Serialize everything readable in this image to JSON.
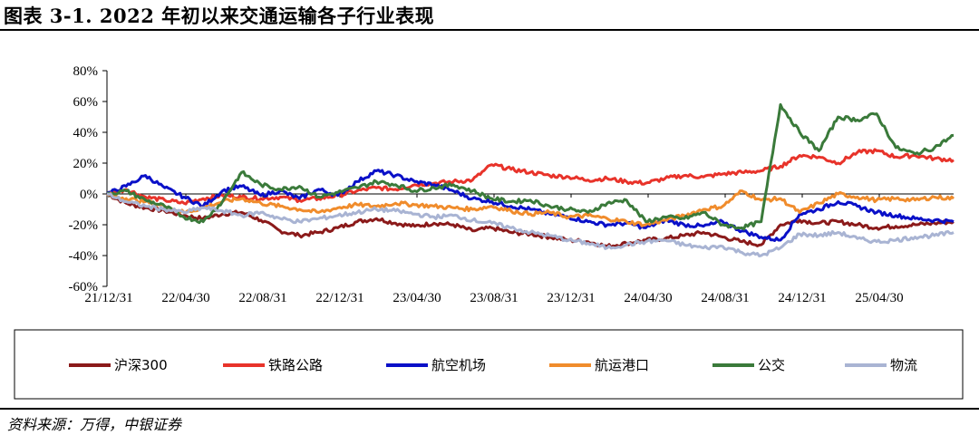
{
  "title": "图表 3-1. 2022 年初以来交通运输各子行业表现",
  "source": "资料来源：万得，中银证券",
  "chart_data": {
    "type": "line",
    "x_labels": [
      "21/12/31",
      "22/04/30",
      "22/08/31",
      "22/12/31",
      "23/04/30",
      "23/08/31",
      "23/12/31",
      "24/04/30",
      "24/08/31",
      "24/12/31",
      "25/04/30"
    ],
    "y_ticks": [
      "80%",
      "60%",
      "40%",
      "20%",
      "0%",
      "-20%",
      "-40%",
      "-60%"
    ],
    "ylim": [
      -60,
      80
    ],
    "x_range": [
      0,
      44
    ],
    "legend_position": "bottom",
    "series": [
      {
        "name": "沪深300",
        "color": "#8b1a1a",
        "points": [
          [
            0,
            0
          ],
          [
            1,
            -6
          ],
          [
            2,
            -9
          ],
          [
            3,
            -11
          ],
          [
            4,
            -14
          ],
          [
            5,
            -16
          ],
          [
            6,
            -13
          ],
          [
            7,
            -12
          ],
          [
            8,
            -17
          ],
          [
            9,
            -24
          ],
          [
            10,
            -27
          ],
          [
            11,
            -25
          ],
          [
            12,
            -22
          ],
          [
            13,
            -18
          ],
          [
            14,
            -16
          ],
          [
            15,
            -19
          ],
          [
            16,
            -21
          ],
          [
            17,
            -19
          ],
          [
            18,
            -20
          ],
          [
            19,
            -24
          ],
          [
            20,
            -22
          ],
          [
            21,
            -25
          ],
          [
            22,
            -26
          ],
          [
            23,
            -28
          ],
          [
            24,
            -30
          ],
          [
            25,
            -31
          ],
          [
            26,
            -34
          ],
          [
            27,
            -32
          ],
          [
            28,
            -30
          ],
          [
            29,
            -29
          ],
          [
            30,
            -27
          ],
          [
            31,
            -25
          ],
          [
            32,
            -28
          ],
          [
            33,
            -31
          ],
          [
            34,
            -33
          ],
          [
            35,
            -20
          ],
          [
            36,
            -17
          ],
          [
            37,
            -19
          ],
          [
            38,
            -18
          ],
          [
            39,
            -20
          ],
          [
            40,
            -22
          ],
          [
            41,
            -21
          ],
          [
            42,
            -20
          ],
          [
            43,
            -19
          ],
          [
            44,
            -18
          ]
        ]
      },
      {
        "name": "铁路公路",
        "color": "#e8332a",
        "points": [
          [
            0,
            0
          ],
          [
            1,
            3
          ],
          [
            2,
            -2
          ],
          [
            3,
            -4
          ],
          [
            4,
            -6
          ],
          [
            5,
            -3
          ],
          [
            6,
            -1
          ],
          [
            7,
            -2
          ],
          [
            8,
            -3
          ],
          [
            9,
            -2
          ],
          [
            10,
            -4
          ],
          [
            11,
            -3
          ],
          [
            12,
            -1
          ],
          [
            13,
            2
          ],
          [
            14,
            4
          ],
          [
            15,
            3
          ],
          [
            16,
            6
          ],
          [
            17,
            7
          ],
          [
            18,
            8
          ],
          [
            19,
            9
          ],
          [
            20,
            19
          ],
          [
            21,
            16
          ],
          [
            22,
            14
          ],
          [
            23,
            12
          ],
          [
            24,
            11
          ],
          [
            25,
            9
          ],
          [
            26,
            10
          ],
          [
            27,
            8
          ],
          [
            28,
            7
          ],
          [
            29,
            10
          ],
          [
            30,
            12
          ],
          [
            31,
            11
          ],
          [
            32,
            13
          ],
          [
            33,
            14
          ],
          [
            34,
            15
          ],
          [
            35,
            18
          ],
          [
            36,
            25
          ],
          [
            37,
            24
          ],
          [
            38,
            20
          ],
          [
            39,
            27
          ],
          [
            40,
            28
          ],
          [
            41,
            24
          ],
          [
            42,
            25
          ],
          [
            43,
            23
          ],
          [
            44,
            22
          ]
        ]
      },
      {
        "name": "航空机场",
        "color": "#0a10c8",
        "points": [
          [
            0,
            0
          ],
          [
            1,
            5
          ],
          [
            2,
            12
          ],
          [
            3,
            4
          ],
          [
            4,
            -2
          ],
          [
            5,
            -8
          ],
          [
            6,
            2
          ],
          [
            7,
            5
          ],
          [
            8,
            -1
          ],
          [
            9,
            2
          ],
          [
            10,
            -3
          ],
          [
            11,
            3
          ],
          [
            12,
            -1
          ],
          [
            13,
            8
          ],
          [
            14,
            15
          ],
          [
            15,
            12
          ],
          [
            16,
            8
          ],
          [
            17,
            6
          ],
          [
            18,
            2
          ],
          [
            19,
            -3
          ],
          [
            20,
            -5
          ],
          [
            21,
            -8
          ],
          [
            22,
            -10
          ],
          [
            23,
            -13
          ],
          [
            24,
            -15
          ],
          [
            25,
            -18
          ],
          [
            26,
            -20
          ],
          [
            27,
            -19
          ],
          [
            28,
            -22
          ],
          [
            29,
            -17
          ],
          [
            30,
            -20
          ],
          [
            31,
            -21
          ],
          [
            32,
            -18
          ],
          [
            33,
            -24
          ],
          [
            34,
            -28
          ],
          [
            35,
            -30
          ],
          [
            36,
            -13
          ],
          [
            37,
            -10
          ],
          [
            38,
            -5
          ],
          [
            39,
            -8
          ],
          [
            40,
            -12
          ],
          [
            41,
            -14
          ],
          [
            42,
            -16
          ],
          [
            43,
            -17
          ],
          [
            44,
            -18
          ]
        ]
      },
      {
        "name": "航运港口",
        "color": "#f08c2c",
        "points": [
          [
            0,
            0
          ],
          [
            1,
            -3
          ],
          [
            2,
            -5
          ],
          [
            3,
            -8
          ],
          [
            4,
            -12
          ],
          [
            5,
            -9
          ],
          [
            6,
            -5
          ],
          [
            7,
            -3
          ],
          [
            8,
            -6
          ],
          [
            9,
            -8
          ],
          [
            10,
            -10
          ],
          [
            11,
            -12
          ],
          [
            12,
            -9
          ],
          [
            13,
            -7
          ],
          [
            14,
            -8
          ],
          [
            15,
            -6
          ],
          [
            16,
            -7
          ],
          [
            17,
            -8
          ],
          [
            18,
            -9
          ],
          [
            19,
            -10
          ],
          [
            20,
            -8
          ],
          [
            21,
            -11
          ],
          [
            22,
            -13
          ],
          [
            23,
            -12
          ],
          [
            24,
            -15
          ],
          [
            25,
            -14
          ],
          [
            26,
            -16
          ],
          [
            27,
            -18
          ],
          [
            28,
            -20
          ],
          [
            29,
            -17
          ],
          [
            30,
            -14
          ],
          [
            31,
            -10
          ],
          [
            32,
            -8
          ],
          [
            33,
            2
          ],
          [
            34,
            -4
          ],
          [
            35,
            -3
          ],
          [
            36,
            -12
          ],
          [
            37,
            -6
          ],
          [
            38,
            0
          ],
          [
            39,
            -2
          ],
          [
            40,
            -4
          ],
          [
            41,
            -3
          ],
          [
            42,
            -4
          ],
          [
            43,
            -2
          ],
          [
            44,
            -3
          ]
        ]
      },
      {
        "name": "公交",
        "color": "#3a7a3a",
        "points": [
          [
            0,
            0
          ],
          [
            1,
            2
          ],
          [
            2,
            -4
          ],
          [
            3,
            -8
          ],
          [
            4,
            -15
          ],
          [
            5,
            -18
          ],
          [
            6,
            -5
          ],
          [
            7,
            14
          ],
          [
            8,
            6
          ],
          [
            9,
            3
          ],
          [
            10,
            5
          ],
          [
            11,
            -2
          ],
          [
            12,
            1
          ],
          [
            13,
            4
          ],
          [
            14,
            8
          ],
          [
            15,
            6
          ],
          [
            16,
            2
          ],
          [
            17,
            4
          ],
          [
            18,
            6
          ],
          [
            19,
            2
          ],
          [
            20,
            -3
          ],
          [
            21,
            -5
          ],
          [
            22,
            -4
          ],
          [
            23,
            -8
          ],
          [
            24,
            -10
          ],
          [
            25,
            -12
          ],
          [
            26,
            -6
          ],
          [
            27,
            -4
          ],
          [
            28,
            -18
          ],
          [
            29,
            -15
          ],
          [
            30,
            -16
          ],
          [
            31,
            -12
          ],
          [
            32,
            -20
          ],
          [
            33,
            -22
          ],
          [
            34,
            -18
          ],
          [
            35,
            58
          ],
          [
            36,
            40
          ],
          [
            37,
            28
          ],
          [
            38,
            50
          ],
          [
            39,
            48
          ],
          [
            40,
            52
          ],
          [
            41,
            30
          ],
          [
            42,
            26
          ],
          [
            43,
            30
          ],
          [
            44,
            38
          ]
        ]
      },
      {
        "name": "物流",
        "color": "#a9b4d3",
        "points": [
          [
            0,
            0
          ],
          [
            1,
            -5
          ],
          [
            2,
            -8
          ],
          [
            3,
            -10
          ],
          [
            4,
            -12
          ],
          [
            5,
            -9
          ],
          [
            6,
            -11
          ],
          [
            7,
            -14
          ],
          [
            8,
            -12
          ],
          [
            9,
            -16
          ],
          [
            10,
            -18
          ],
          [
            11,
            -16
          ],
          [
            12,
            -14
          ],
          [
            13,
            -12
          ],
          [
            14,
            -10
          ],
          [
            15,
            -11
          ],
          [
            16,
            -13
          ],
          [
            17,
            -15
          ],
          [
            18,
            -14
          ],
          [
            19,
            -17
          ],
          [
            20,
            -19
          ],
          [
            21,
            -22
          ],
          [
            22,
            -25
          ],
          [
            23,
            -27
          ],
          [
            24,
            -30
          ],
          [
            25,
            -32
          ],
          [
            26,
            -35
          ],
          [
            27,
            -33
          ],
          [
            28,
            -31
          ],
          [
            29,
            -30
          ],
          [
            30,
            -33
          ],
          [
            31,
            -35
          ],
          [
            32,
            -34
          ],
          [
            33,
            -38
          ],
          [
            34,
            -40
          ],
          [
            35,
            -35
          ],
          [
            36,
            -26
          ],
          [
            37,
            -27
          ],
          [
            38,
            -25
          ],
          [
            39,
            -29
          ],
          [
            40,
            -31
          ],
          [
            41,
            -30
          ],
          [
            42,
            -28
          ],
          [
            43,
            -27
          ],
          [
            44,
            -25
          ]
        ]
      }
    ]
  }
}
